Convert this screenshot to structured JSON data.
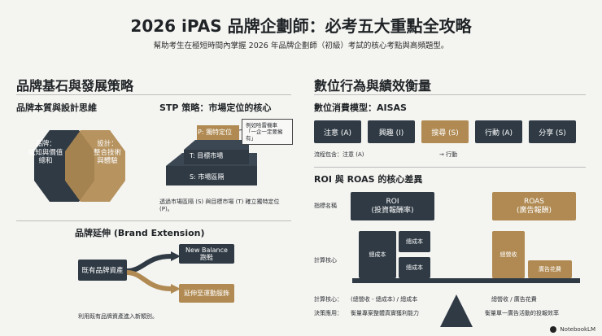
{
  "header": {
    "title": "2026 iPAS 品牌企劃師：必考五大重點全攻略",
    "subtitle": "幫助考生在極短時間內掌握 2026 年品牌企劃師（初級）考試的核心考點與高頻題型。"
  },
  "left": {
    "section_title": "品牌基石與發展策略",
    "brand_essence": {
      "title": "品牌本質與設計思維",
      "left_circle": "品牌：\n威知與價值\n總和",
      "right_circle": "設計：\n整合技術\n與體驗"
    },
    "stp": {
      "title": "STP 策略：市場定位的核心",
      "p_label": "P: 獨特定位",
      "t_label": "T: 目標市場",
      "s_label": "S: 市場區隔",
      "callout": "例如哈雷機車\n「一企一定要擁有」",
      "caption": "透過市場區隔 (S) 與目標市場 (T) 確立獨特定位\n(P)。"
    },
    "extension": {
      "title": "品牌延伸 (Brand Extension)",
      "base": "既有品牌資產",
      "top_branch": "New Balance\n跑鞋",
      "bottom_branch": "延伸至運動服飾",
      "caption": "利用既有品牌資產進入新類別。"
    }
  },
  "right": {
    "section_title": "數位行為與績效衡量",
    "aisas": {
      "title": "數位消費模型：AISAS",
      "steps": [
        {
          "label": "注意 (A)",
          "color": "#2f3a44"
        },
        {
          "label": "興趣 (I)",
          "color": "#2f3a44"
        },
        {
          "label": "搜尋 (S)",
          "color": "#b08a52"
        },
        {
          "label": "行動 (A)",
          "color": "#2f3a44"
        },
        {
          "label": "分享 (S)",
          "color": "#2f3a44"
        }
      ],
      "note_left": "流程包含：注意 (A)",
      "note_right": "→ 行動"
    },
    "roi": {
      "title": "ROI 與 ROAS 的核心差異",
      "row_indicator": "指標名稱",
      "row_calc": "計算核心",
      "row_formula": "計算核心：",
      "row_decision": "決策應用：",
      "roi_title": "ROI\n(投資報酬率)",
      "roas_title": "ROAS\n(廣告報酬)",
      "revenue_label": "總成本",
      "cost_label_1": "總成本",
      "cost_label_2": "總成本",
      "roas_revenue": "總營收",
      "roas_ad": "廣告花費",
      "roi_formula": "(總營收 - 總成本) / 總成本",
      "roas_formula": "總營收 / 廣告花費",
      "roi_decision": "衡量專案整體真實獲利能力",
      "roas_decision": "衡量單一廣告活動的投報效率"
    }
  },
  "footer": {
    "brand": "NotebookLM"
  },
  "colors": {
    "dark": "#2f3a44",
    "gold": "#b08a52"
  }
}
